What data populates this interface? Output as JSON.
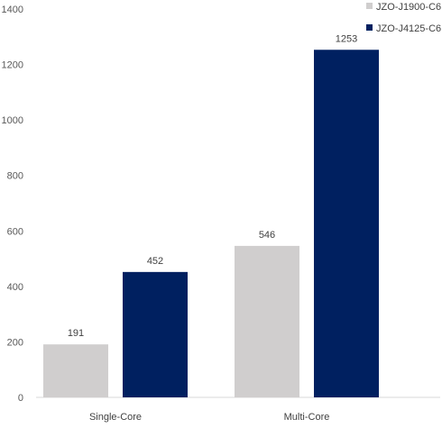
{
  "chart_data": {
    "type": "bar",
    "categories": [
      "Single-Core",
      "Multi-Core"
    ],
    "series": [
      {
        "name": "JZO-J1900-C6",
        "values": [
          191,
          546
        ],
        "color": "#d0cece"
      },
      {
        "name": "JZO-J4125-C6",
        "values": [
          452,
          1253
        ],
        "color": "#002060"
      }
    ],
    "ylim": [
      0,
      1400
    ],
    "yticks": [
      0,
      200,
      400,
      600,
      800,
      1000,
      1200,
      1400
    ],
    "grid": false,
    "legend": "top-right",
    "data_labels": true
  }
}
